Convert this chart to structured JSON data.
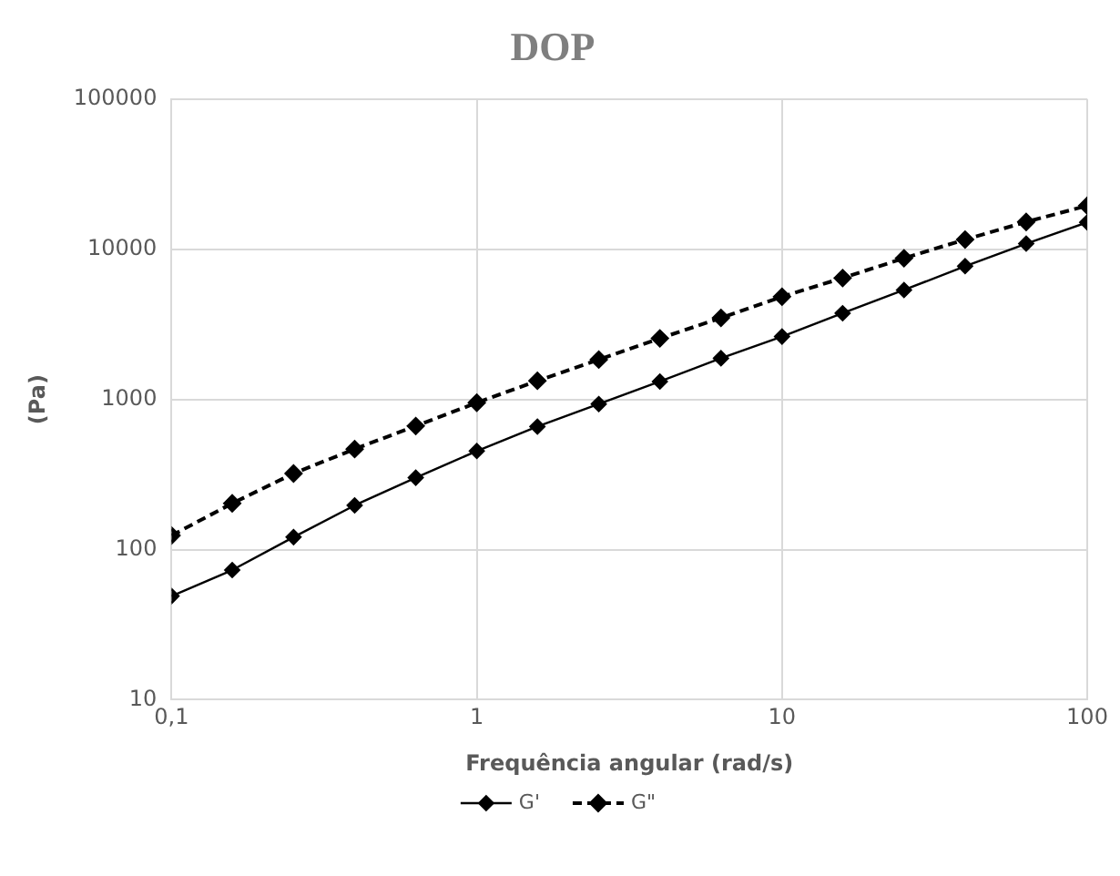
{
  "chart_data": {
    "type": "line",
    "title": "DOP",
    "xlabel": "Frequência angular (rad/s)",
    "ylabel": "(Pa)",
    "x": [
      0.1,
      0.158,
      0.251,
      0.398,
      0.631,
      1,
      1.58,
      2.51,
      3.98,
      6.31,
      10,
      15.8,
      25.1,
      39.8,
      63.1,
      100
    ],
    "series": [
      {
        "name": "G'",
        "color": "#000000",
        "line_style": "solid",
        "values": [
          49,
          73,
          121,
          197,
          301,
          453,
          659,
          931,
          1315,
          1880,
          2620,
          3750,
          5350,
          7710,
          10900,
          15100
        ]
      },
      {
        "name": "G\"",
        "color": "#000000",
        "line_style": "dashed",
        "values": [
          124,
          203,
          321,
          467,
          665,
          950,
          1330,
          1840,
          2550,
          3490,
          4830,
          6430,
          8710,
          11600,
          15200,
          19500
        ]
      }
    ],
    "log": "xy",
    "xlim": [
      0.1,
      100
    ],
    "xticks": [
      {
        "value": 0.1,
        "label": "0,1"
      },
      1,
      10,
      100
    ],
    "ylim": [
      10,
      100000
    ],
    "yticks": [
      10,
      100,
      1000,
      10000,
      100000
    ],
    "grid": true,
    "legend": "bottom",
    "marker": "diamond"
  }
}
